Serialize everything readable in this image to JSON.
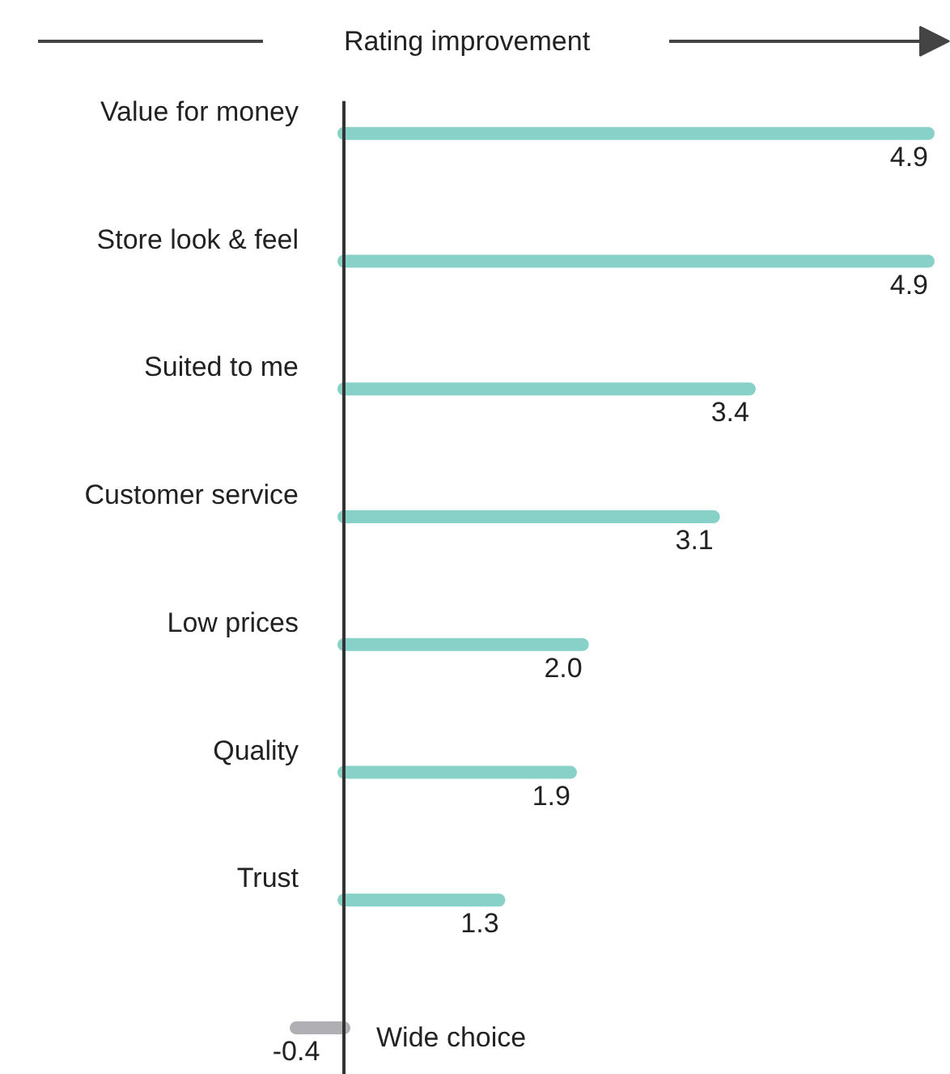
{
  "chart_data": {
    "type": "bar",
    "orientation": "horizontal",
    "title": "Rating improvement",
    "categories": [
      "Value for money",
      "Store look & feel",
      "Suited to me",
      "Customer service",
      "Low prices",
      "Quality",
      "Trust",
      "Wide choice"
    ],
    "values": [
      4.9,
      4.9,
      3.4,
      3.1,
      2.0,
      1.9,
      1.3,
      -0.4
    ],
    "colors": [
      "#88d1c8",
      "#88d1c8",
      "#88d1c8",
      "#88d1c8",
      "#88d1c8",
      "#88d1c8",
      "#88d1c8",
      "#b0b0b4"
    ],
    "value_labels": [
      "4.9",
      "4.9",
      "3.4",
      "3.1",
      "2.0",
      "1.9",
      "1.3",
      "-0.4"
    ]
  }
}
